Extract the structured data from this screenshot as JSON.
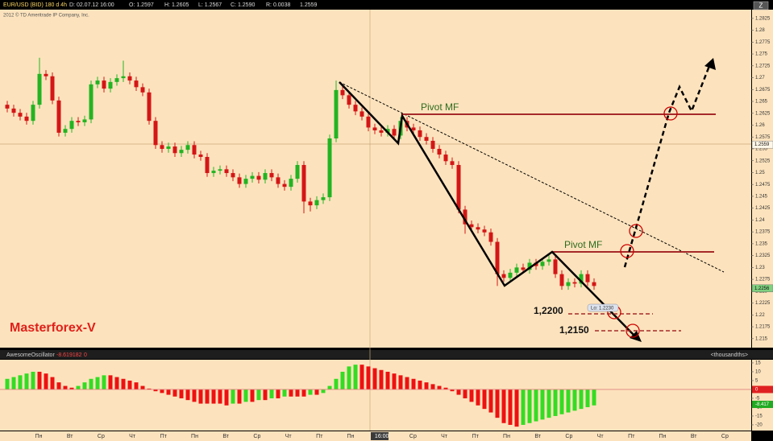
{
  "header": {
    "symbol": "EUR/USD (BID) 180 d 4h",
    "date": "D: 02.07.12 16:00",
    "open": "O: 1.2597",
    "high": "H: 1.2605",
    "low": "L: 1.2567",
    "close": "C: 1.2590",
    "range": "R: 0.0038",
    "last": "1.2559",
    "copyright": "2012 © TD Ameritrade IP Company, Inc."
  },
  "time_axis": [
    "Пн",
    "Вт",
    "Ср",
    "Чт",
    "Пт",
    "Пн",
    "Вт",
    "Ср",
    "Чт",
    "Пт",
    "Пн",
    "16:00",
    "Ср",
    "Чт",
    "Пт",
    "Пн",
    "Вт",
    "Ср",
    "Чт",
    "Пт",
    "Пн",
    "Вт",
    "Ср"
  ],
  "annotations": [
    "Pivot MF",
    "Pivot MF",
    "1,2200",
    "1,2150",
    "Lo: 1.2230",
    "Masterforex-V"
  ],
  "chart_data": [
    {
      "type": "candlestick",
      "up_color": "#22b422",
      "down_color": "#d41616",
      "ylim": [
        1.2131,
        1.284
      ],
      "yticks": [
        1.2825,
        1.28,
        1.2775,
        1.275,
        1.2725,
        1.27,
        1.2675,
        1.265,
        1.2625,
        1.26,
        1.2575,
        1.255,
        1.2525,
        1.25,
        1.2475,
        1.245,
        1.2425,
        1.24,
        1.2375,
        1.235,
        1.2325,
        1.23,
        1.2275,
        1.225,
        1.2225,
        1.22,
        1.2175,
        1.215
      ],
      "price_markers": [
        1.2559,
        1.2256
      ],
      "candles": [
        [
          1.2643,
          1.2651,
          1.2627,
          1.2635
        ],
        [
          1.2635,
          1.2643,
          1.2618,
          1.2626
        ],
        [
          1.2626,
          1.2634,
          1.261,
          1.2618
        ],
        [
          1.2618,
          1.2626,
          1.2601,
          1.2609
        ],
        [
          1.2609,
          1.2651,
          1.2601,
          1.2643
        ],
        [
          1.2643,
          1.2742,
          1.2635,
          1.2708
        ],
        [
          1.2708,
          1.2716,
          1.2695,
          1.2703
        ],
        [
          1.2703,
          1.2711,
          1.2644,
          1.2652
        ],
        [
          1.2652,
          1.266,
          1.2576,
          1.2584
        ],
        [
          1.2584,
          1.26,
          1.2576,
          1.2592
        ],
        [
          1.2592,
          1.2617,
          1.2584,
          1.2609
        ],
        [
          1.2609,
          1.2617,
          1.2598,
          1.2606
        ],
        [
          1.2606,
          1.262,
          1.2598,
          1.2612
        ],
        [
          1.2612,
          1.2694,
          1.2604,
          1.2686
        ],
        [
          1.2686,
          1.2702,
          1.2678,
          1.2694
        ],
        [
          1.2694,
          1.2702,
          1.2669,
          1.2677
        ],
        [
          1.2677,
          1.2699,
          1.2669,
          1.2691
        ],
        [
          1.2691,
          1.2707,
          1.2683,
          1.2699
        ],
        [
          1.2699,
          1.2736,
          1.2691,
          1.2703
        ],
        [
          1.2703,
          1.2711,
          1.2686,
          1.2694
        ],
        [
          1.2694,
          1.2702,
          1.2672,
          1.268
        ],
        [
          1.268,
          1.2688,
          1.2661,
          1.2669
        ],
        [
          1.2669,
          1.2677,
          1.2601,
          1.2609
        ],
        [
          1.2609,
          1.2617,
          1.255,
          1.2558
        ],
        [
          1.2558,
          1.2566,
          1.2542,
          1.255
        ],
        [
          1.255,
          1.2563,
          1.2542,
          1.2555
        ],
        [
          1.2555,
          1.2563,
          1.2533,
          1.2541
        ],
        [
          1.2541,
          1.2556,
          1.2533,
          1.2548
        ],
        [
          1.2548,
          1.2566,
          1.254,
          1.2558
        ],
        [
          1.2558,
          1.2566,
          1.253,
          1.2538
        ],
        [
          1.2538,
          1.2546,
          1.2525,
          1.2533
        ],
        [
          1.2533,
          1.2541,
          1.2491,
          1.2499
        ],
        [
          1.2499,
          1.2512,
          1.2491,
          1.2504
        ],
        [
          1.2504,
          1.2515,
          1.2496,
          1.2507
        ],
        [
          1.2507,
          1.2515,
          1.2491,
          1.2499
        ],
        [
          1.2499,
          1.2507,
          1.2482,
          1.249
        ],
        [
          1.249,
          1.2498,
          1.2468,
          1.2476
        ],
        [
          1.2476,
          1.2495,
          1.2468,
          1.2487
        ],
        [
          1.2487,
          1.2501,
          1.2479,
          1.2493
        ],
        [
          1.2493,
          1.2501,
          1.2477,
          1.2485
        ],
        [
          1.2485,
          1.2507,
          1.2477,
          1.2499
        ],
        [
          1.2499,
          1.2507,
          1.2482,
          1.249
        ],
        [
          1.249,
          1.2498,
          1.2468,
          1.2476
        ],
        [
          1.2476,
          1.2484,
          1.2462,
          1.247
        ],
        [
          1.247,
          1.2495,
          1.2462,
          1.2487
        ],
        [
          1.2487,
          1.2524,
          1.2479,
          1.2516
        ],
        [
          1.2516,
          1.2524,
          1.2414,
          1.2439
        ],
        [
          1.2439,
          1.2447,
          1.2418,
          1.2431
        ],
        [
          1.2431,
          1.245,
          1.2423,
          1.2442
        ],
        [
          1.2442,
          1.2456,
          1.2434,
          1.2448
        ],
        [
          1.2448,
          1.258,
          1.244,
          1.2572
        ],
        [
          1.2572,
          1.2694,
          1.2564,
          1.2674
        ],
        [
          1.2674,
          1.2682,
          1.2655,
          1.2663
        ],
        [
          1.2663,
          1.2671,
          1.2635,
          1.2643
        ],
        [
          1.2643,
          1.2651,
          1.2621,
          1.2629
        ],
        [
          1.2629,
          1.2637,
          1.261,
          1.2618
        ],
        [
          1.2618,
          1.2626,
          1.2587,
          1.2595
        ],
        [
          1.2595,
          1.2603,
          1.2581,
          1.2589
        ],
        [
          1.2589,
          1.2597,
          1.2576,
          1.2584
        ],
        [
          1.2584,
          1.26,
          1.2576,
          1.2592
        ],
        [
          1.2592,
          1.26,
          1.257,
          1.2578
        ],
        [
          1.2578,
          1.2617,
          1.257,
          1.2609
        ],
        [
          1.2609,
          1.2617,
          1.2587,
          1.2595
        ],
        [
          1.2595,
          1.2603,
          1.2581,
          1.2589
        ],
        [
          1.2589,
          1.2597,
          1.2567,
          1.2575
        ],
        [
          1.2575,
          1.2583,
          1.2559,
          1.2567
        ],
        [
          1.2567,
          1.2575,
          1.2542,
          1.255
        ],
        [
          1.255,
          1.2558,
          1.253,
          1.2538
        ],
        [
          1.2538,
          1.2546,
          1.2516,
          1.2524
        ],
        [
          1.2524,
          1.2532,
          1.2508,
          1.2516
        ],
        [
          1.2516,
          1.2524,
          1.2414,
          1.2422
        ],
        [
          1.2422,
          1.243,
          1.2371,
          1.2391
        ],
        [
          1.2391,
          1.2399,
          1.2377,
          1.2385
        ],
        [
          1.2385,
          1.2393,
          1.2372,
          1.238
        ],
        [
          1.238,
          1.2388,
          1.2366,
          1.2374
        ],
        [
          1.2374,
          1.2382,
          1.2346,
          1.2354
        ],
        [
          1.2354,
          1.2362,
          1.2261,
          1.2286
        ],
        [
          1.2286,
          1.2294,
          1.227,
          1.2278
        ],
        [
          1.2278,
          1.2297,
          1.227,
          1.2289
        ],
        [
          1.2289,
          1.2308,
          1.2281,
          1.23
        ],
        [
          1.23,
          1.2308,
          1.2287,
          1.2295
        ],
        [
          1.2295,
          1.2318,
          1.2287,
          1.231
        ],
        [
          1.231,
          1.2318,
          1.2295,
          1.2303
        ],
        [
          1.2303,
          1.232,
          1.2295,
          1.2312
        ],
        [
          1.2312,
          1.2329,
          1.2304,
          1.2317
        ],
        [
          1.2317,
          1.2325,
          1.2278,
          1.2286
        ],
        [
          1.2286,
          1.2294,
          1.2253,
          1.2261
        ],
        [
          1.2261,
          1.2277,
          1.2253,
          1.2269
        ],
        [
          1.2269,
          1.2277,
          1.2258,
          1.2266
        ],
        [
          1.2266,
          1.2294,
          1.2258,
          1.2286
        ],
        [
          1.2286,
          1.2294,
          1.2261,
          1.2269
        ],
        [
          1.2269,
          1.2277,
          1.2253,
          1.2261
        ]
      ]
    },
    {
      "type": "oscillator",
      "title": "AwesomeOscillator",
      "current": -8.619182,
      "zero": 0,
      "units": "<thousandths>",
      "up_color": "#33dd22",
      "down_color": "#ee1111",
      "ylim": [
        -23.2,
        16.8
      ],
      "yticks": [
        15,
        10,
        5,
        0,
        -5,
        -10,
        -15,
        -20
      ],
      "markers": [
        0,
        -8.417
      ],
      "values": [
        6,
        7,
        8,
        9,
        10,
        10,
        9,
        7,
        4,
        2,
        1,
        2,
        4,
        6,
        7,
        8,
        8,
        7,
        6,
        5,
        4,
        2,
        0.5,
        -1,
        -2,
        -3,
        -4,
        -5,
        -6,
        -7,
        -8,
        -8,
        -8,
        -8,
        -9,
        -8,
        -8,
        -7,
        -7,
        -6,
        -6,
        -5,
        -5,
        -4,
        -4,
        -4,
        -4,
        -3,
        -3,
        -2,
        2,
        6,
        10,
        13,
        14,
        14,
        13,
        12,
        11,
        10,
        9,
        8,
        7,
        6,
        5,
        4,
        3,
        2,
        1,
        -1,
        -3,
        -5,
        -7,
        -9,
        -11,
        -13,
        -16,
        -19,
        -20,
        -21,
        -20,
        -19,
        -18,
        -17,
        -16,
        -15,
        -14,
        -13,
        -12,
        -11,
        -10,
        -9
      ]
    }
  ]
}
